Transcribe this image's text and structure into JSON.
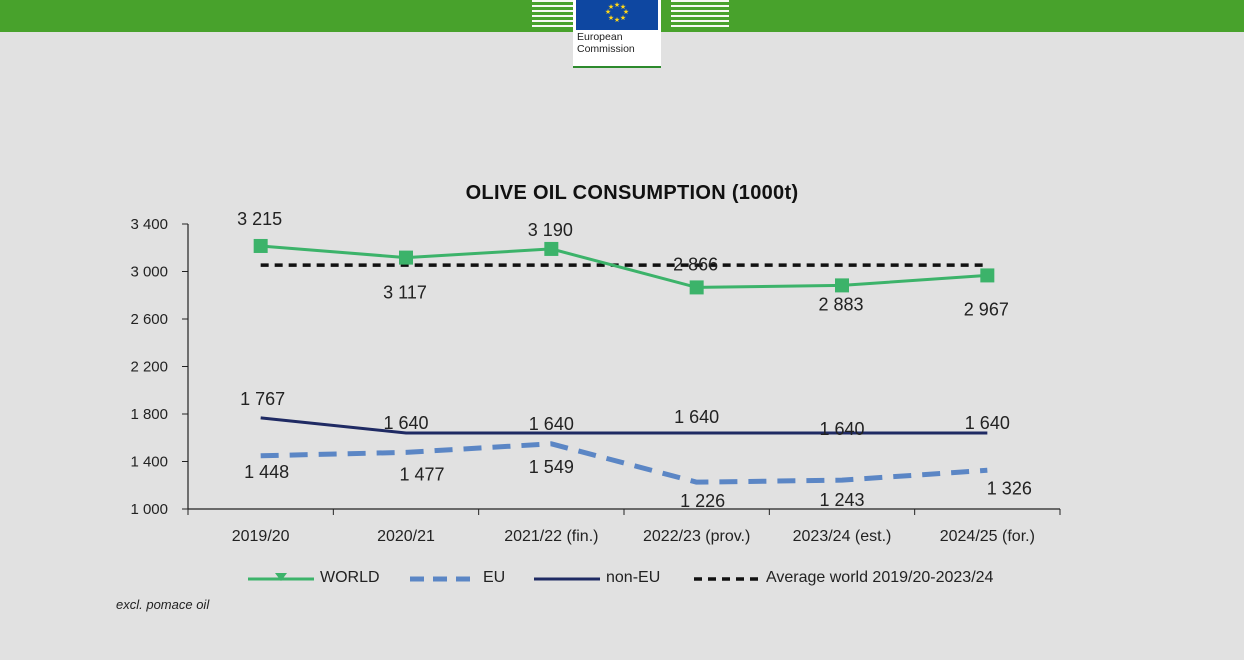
{
  "header": {
    "logo_line1": "European",
    "logo_line2": "Commission"
  },
  "colors": {
    "world": "#3cb36a",
    "eu": "#5b86c5",
    "non_eu": "#1f2a63",
    "average": "#111111",
    "header_green": "#48a22c",
    "background": "#e1e1e1"
  },
  "chart_data": {
    "type": "line",
    "title": "OLIVE OIL CONSUMPTION  (1000t)",
    "categories": [
      "2019/20",
      "2020/21",
      "2021/22 (fin.)",
      "2022/23 (prov.)",
      "2023/24 (est.)",
      "2024/25 (for.)"
    ],
    "ylim": [
      1000,
      3400
    ],
    "yticks": [
      1000,
      1400,
      1800,
      2200,
      2600,
      3000,
      3400
    ],
    "ytick_labels": [
      "1 000",
      "1 400",
      "1 800",
      "2 200",
      "2 600",
      "3 000",
      "3 400"
    ],
    "grid": false,
    "legend_position": "bottom",
    "series": [
      {
        "name": "WORLD",
        "values": [
          3215,
          3117,
          3190,
          2866,
          2883,
          2967
        ],
        "labels": [
          "3 215",
          "3 117",
          "3 190",
          "2 866",
          "2 883",
          "2 967"
        ]
      },
      {
        "name": "EU",
        "values": [
          1448,
          1477,
          1549,
          1226,
          1243,
          1326
        ],
        "labels": [
          "1 448",
          "1 477",
          "1 549",
          "1 226",
          "1 243",
          "1 326"
        ]
      },
      {
        "name": "non-EU",
        "values": [
          1767,
          1640,
          1640,
          1640,
          1640,
          1640
        ],
        "labels": [
          "1 767",
          "1 640",
          "1 640",
          "1 640",
          "1 640",
          "1 640"
        ]
      },
      {
        "name": "Average world 2019/20-2023/24",
        "values": [
          3054,
          3054,
          3054,
          3054,
          3054,
          3054
        ]
      }
    ]
  },
  "footnote": "excl. pomace oil"
}
